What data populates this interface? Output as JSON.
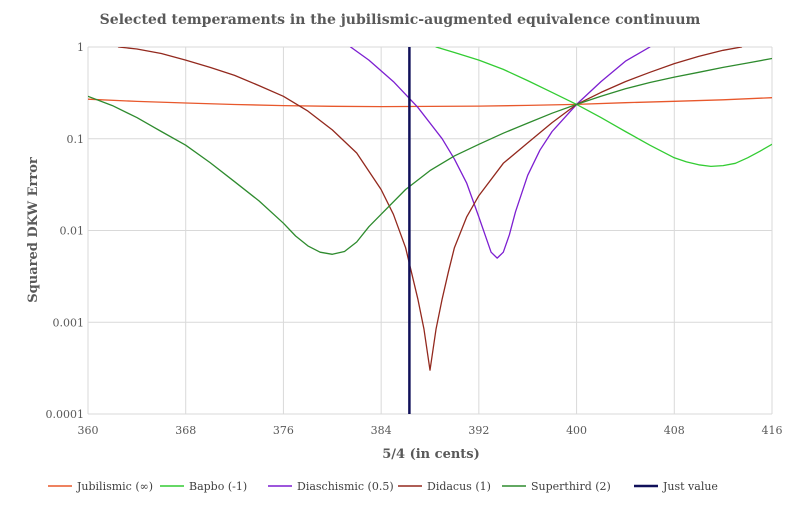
{
  "chart_data": {
    "type": "line",
    "title": "Selected temperaments in the jubilismic-augmented equivalence continuum",
    "xlabel": "5/4 (in cents)",
    "ylabel": "Squared DKW Error",
    "xlim": [
      360,
      416
    ],
    "ylim": [
      0.0001,
      1
    ],
    "y_scale": "log",
    "x_ticks": [
      "360",
      "368",
      "376",
      "384",
      "392",
      "400",
      "408",
      "416"
    ],
    "y_ticks": [
      "0.0001",
      "0.001",
      "0.01",
      "0.1",
      "1"
    ],
    "grid": true,
    "legend_position": "bottom",
    "series": [
      {
        "name": "Jubilismic (∞)",
        "color": "#e8582c",
        "x": [
          360,
          364,
          368,
          372,
          376,
          380,
          384,
          388,
          392,
          396,
          400,
          404,
          408,
          412,
          416
        ],
        "y": [
          0.27,
          0.255,
          0.245,
          0.236,
          0.23,
          0.226,
          0.224,
          0.225,
          0.227,
          0.231,
          0.237,
          0.247,
          0.256,
          0.266,
          0.28
        ]
      },
      {
        "name": "Bapbo (-1)",
        "color": "#33cc33",
        "x": [
          388.5,
          390,
          392,
          394,
          396,
          398,
          400,
          402,
          404,
          406,
          408,
          409,
          410,
          411,
          412,
          413,
          414,
          415,
          416
        ],
        "y": [
          1.0,
          0.87,
          0.72,
          0.57,
          0.43,
          0.32,
          0.237,
          0.17,
          0.12,
          0.085,
          0.062,
          0.056,
          0.052,
          0.05,
          0.051,
          0.054,
          0.062,
          0.073,
          0.087
        ]
      },
      {
        "name": "Diaschismic (0.5)",
        "color": "#7d1fd1",
        "x": [
          381.5,
          383,
          385,
          387,
          389,
          390,
          391,
          392,
          392.5,
          393,
          393.5,
          394,
          394.5,
          395,
          396,
          397,
          398,
          400,
          402,
          404,
          406
        ],
        "y": [
          1.0,
          0.72,
          0.42,
          0.22,
          0.1,
          0.06,
          0.033,
          0.014,
          0.009,
          0.0058,
          0.005,
          0.0058,
          0.009,
          0.016,
          0.04,
          0.075,
          0.12,
          0.237,
          0.42,
          0.7,
          1.0
        ]
      },
      {
        "name": "Didacus (1)",
        "color": "#93291e",
        "x": [
          362.5,
          364,
          366,
          368,
          370,
          372,
          374,
          376,
          378,
          380,
          382,
          384,
          385,
          386,
          387,
          387.5,
          388,
          388.5,
          389,
          389.5,
          390,
          391,
          392,
          394,
          396,
          398,
          400,
          402,
          404,
          406,
          408,
          410,
          412,
          413.5
        ],
        "y": [
          1.0,
          0.95,
          0.85,
          0.72,
          0.6,
          0.49,
          0.38,
          0.29,
          0.2,
          0.125,
          0.07,
          0.028,
          0.015,
          0.0065,
          0.0018,
          0.00085,
          0.0003,
          0.00085,
          0.0018,
          0.0035,
          0.0065,
          0.014,
          0.024,
          0.054,
          0.09,
          0.15,
          0.237,
          0.32,
          0.42,
          0.53,
          0.66,
          0.79,
          0.92,
          1.0
        ]
      },
      {
        "name": "Superthird (2)",
        "color": "#2e8b2e",
        "x": [
          360,
          362,
          364,
          366,
          368,
          370,
          372,
          374,
          376,
          377,
          378,
          379,
          380,
          381,
          382,
          383,
          384,
          386,
          388,
          390,
          392,
          394,
          396,
          398,
          400,
          402,
          404,
          406,
          408,
          410,
          412,
          414,
          416
        ],
        "y": [
          0.29,
          0.23,
          0.17,
          0.12,
          0.085,
          0.055,
          0.034,
          0.021,
          0.012,
          0.0087,
          0.0068,
          0.0058,
          0.0055,
          0.0059,
          0.0075,
          0.011,
          0.015,
          0.028,
          0.045,
          0.065,
          0.087,
          0.115,
          0.148,
          0.19,
          0.237,
          0.29,
          0.35,
          0.41,
          0.47,
          0.53,
          0.6,
          0.67,
          0.75
        ]
      },
      {
        "name": "Just value",
        "color": "#10105a",
        "x": [
          386.31,
          386.31
        ],
        "y": [
          0.0001,
          1
        ]
      }
    ]
  }
}
